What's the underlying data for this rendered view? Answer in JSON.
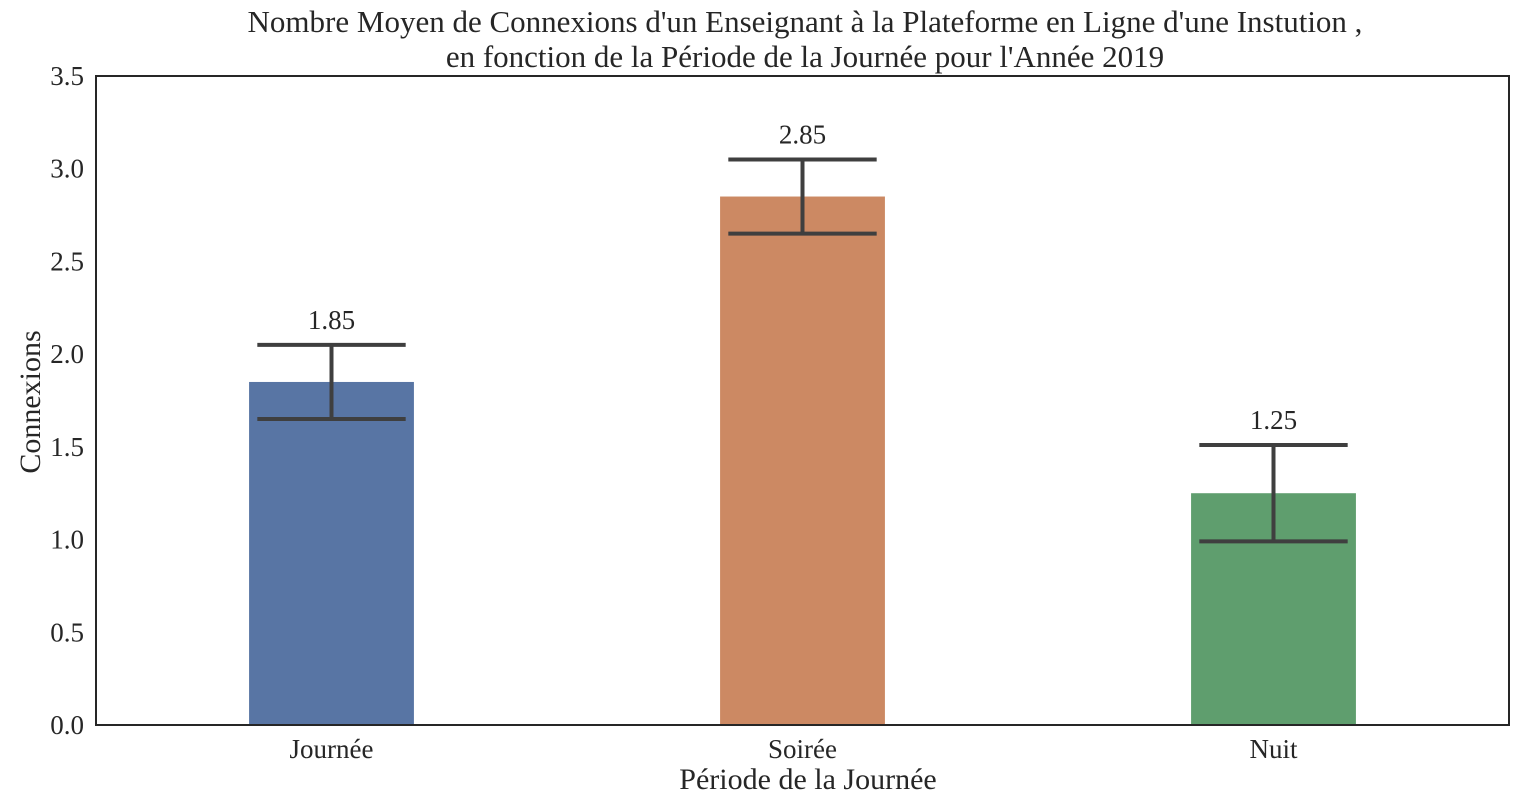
{
  "chart_data": {
    "type": "bar",
    "title": [
      "Nombre Moyen de Connexions d'un Enseignant à la Plateforme en Ligne d'une Instution ,",
      "en fonction de la Période de la Journée pour l'Année 2019"
    ],
    "xlabel": "Période de la Journée",
    "ylabel": "Connexions",
    "categories": [
      "Journée",
      "Soirée",
      "Nuit"
    ],
    "values": [
      1.85,
      2.85,
      1.25
    ],
    "value_labels": [
      "1.85",
      "2.85",
      "1.25"
    ],
    "error_low": [
      1.65,
      2.65,
      0.99
    ],
    "error_high": [
      2.05,
      3.05,
      1.51
    ],
    "colors": [
      "#5875a4",
      "#cc8963",
      "#5f9e6e"
    ],
    "ylim": [
      0,
      3.5
    ],
    "yticks": [
      0.0,
      0.5,
      1.0,
      1.5,
      2.0,
      2.5,
      3.0,
      3.5
    ],
    "ytick_labels": [
      "0.0",
      "0.5",
      "1.0",
      "1.5",
      "2.0",
      "2.5",
      "3.0",
      "3.5"
    ],
    "grid": false,
    "legend": "none"
  }
}
